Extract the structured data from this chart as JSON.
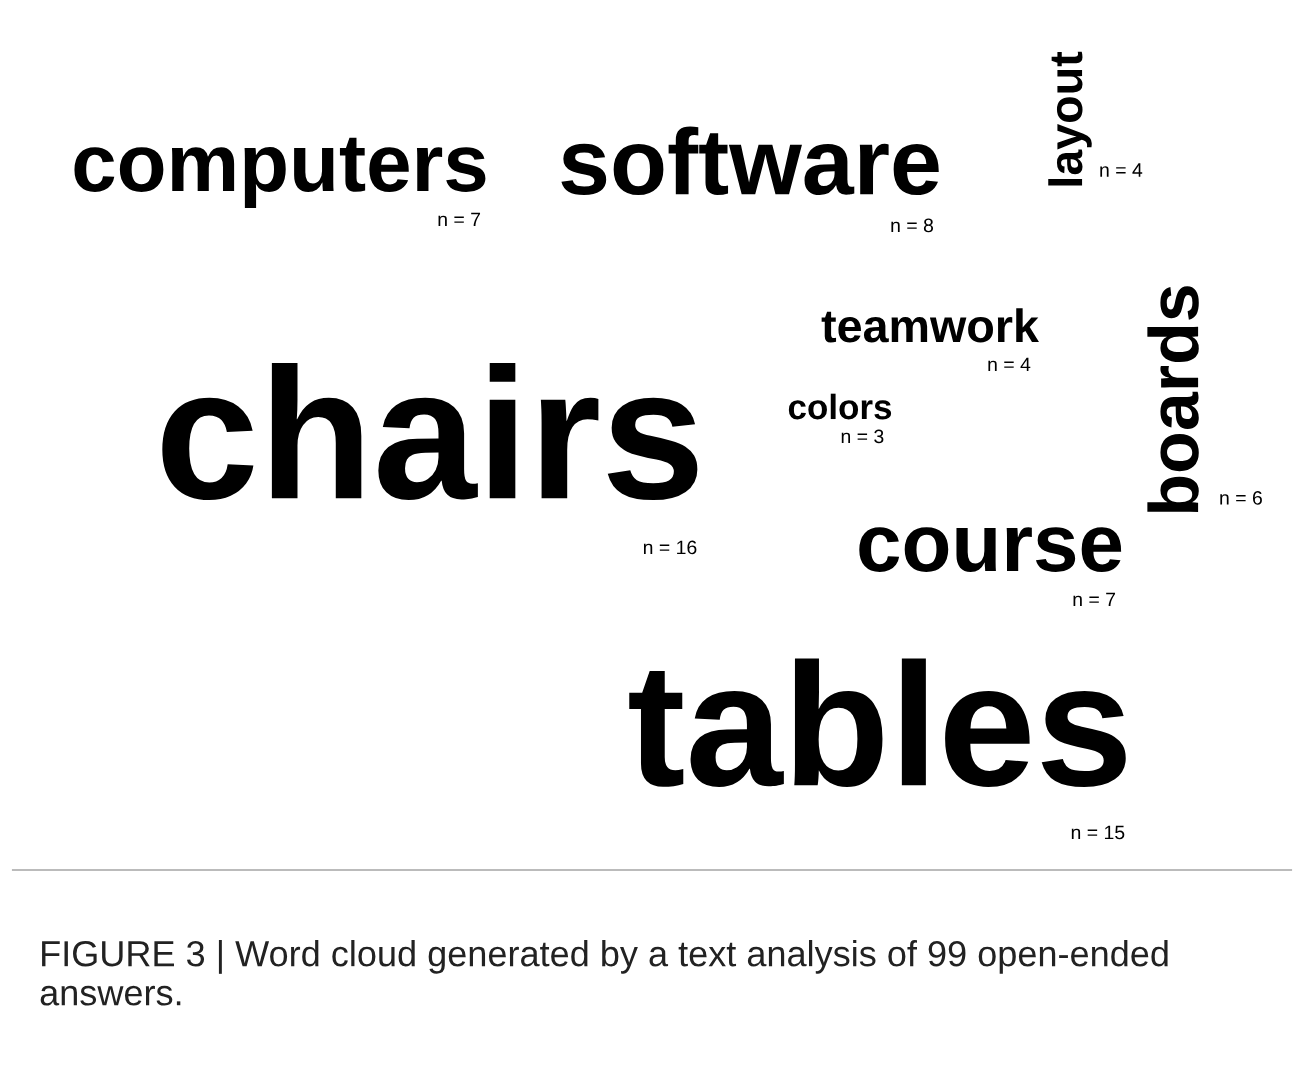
{
  "chart_data": {
    "type": "other",
    "categories": [
      "chairs",
      "tables",
      "computers",
      "software",
      "layout",
      "teamwork",
      "colors",
      "boards",
      "course"
    ],
    "values": [
      16,
      15,
      7,
      8,
      4,
      4,
      3,
      6,
      7
    ],
    "value_labels": [
      "n = 16",
      "n = 15",
      "n = 7",
      "n = 8",
      "n = 4",
      "n = 4",
      "n = 3",
      "n = 6",
      "n = 7"
    ],
    "color": "#000000",
    "annotations": [
      "FIGURE 3 | Word cloud generated by a text analysis of 99 open-ended answers."
    ]
  }
}
